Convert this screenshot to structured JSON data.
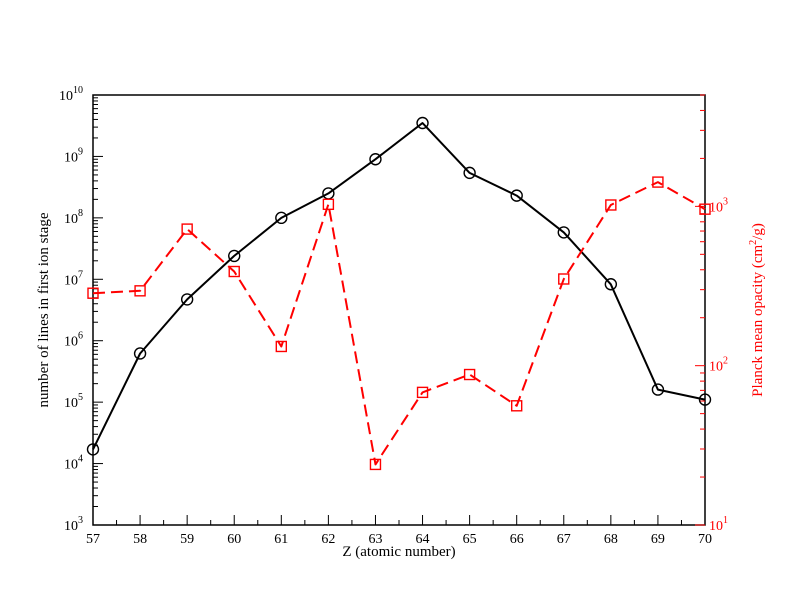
{
  "chart_data": {
    "type": "line",
    "title": "",
    "xlabel": "Z (atomic number)",
    "ylabel_left": "number of lines in first ion stage",
    "ylabel_right_parts": [
      "Planck mean opacity (cm",
      "2",
      "/g)"
    ],
    "x": [
      57,
      58,
      59,
      60,
      61,
      62,
      63,
      64,
      65,
      66,
      67,
      68,
      69,
      70
    ],
    "xlim": [
      57,
      70
    ],
    "x_ticks": [
      "57",
      "58",
      "59",
      "60",
      "61",
      "62",
      "63",
      "64",
      "65",
      "66",
      "67",
      "68",
      "69",
      "70"
    ],
    "left_axis": {
      "scale": "log",
      "ylim": [
        1000,
        10000000000
      ],
      "tick_exponents": [
        "3",
        "4",
        "5",
        "6",
        "7",
        "8",
        "9",
        "10"
      ]
    },
    "right_axis": {
      "scale": "log",
      "ylim": [
        10,
        5000
      ],
      "tick_labels": [
        {
          "value": 10,
          "base": "10",
          "exp": "1"
        },
        {
          "value": 100,
          "base": "10",
          "exp": "2"
        },
        {
          "value": 1000,
          "base": "10",
          "exp": "3"
        }
      ]
    },
    "series": [
      {
        "axis": "left",
        "color": "#000000",
        "line_style": "solid",
        "marker": "circle",
        "values": [
          17000,
          620000,
          4700000,
          24000000,
          100000000,
          250000000,
          900000000,
          3500000000,
          540000000,
          230000000,
          58000000,
          8300000,
          160000,
          110000
        ]
      },
      {
        "axis": "right",
        "color": "#ff0000",
        "line_style": "dashed",
        "marker": "square",
        "values": [
          285,
          295,
          720,
          390,
          132,
          1030,
          24,
          68,
          88,
          56,
          350,
          1020,
          1420,
          960
        ]
      }
    ]
  }
}
